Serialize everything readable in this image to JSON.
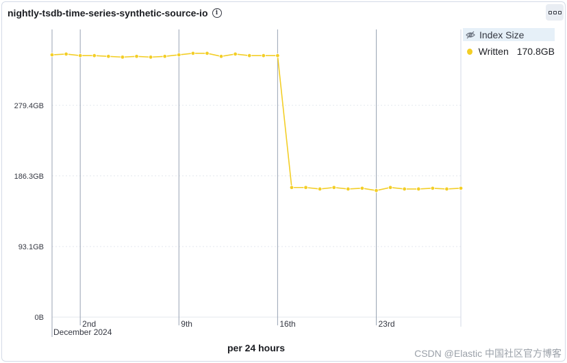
{
  "panel": {
    "title": "nightly-tsdb-time-series-synthetic-source-io",
    "info_icon": "info-icon",
    "menu_icon": "panel-options-icon"
  },
  "legend": {
    "header_label": "Index Size",
    "header_icon": "eye-closed-icon",
    "items": [
      {
        "name": "Written",
        "value": "170.8GB",
        "color": "#f3ce26"
      }
    ]
  },
  "watermark": "CSDN @Elastic 中国社区官方博客",
  "chart_data": {
    "type": "line",
    "title": "nightly-tsdb-time-series-synthetic-source-io",
    "xlabel": "per 24 hours",
    "ylabel": "",
    "x_tick_labels": [
      "2nd",
      "9th",
      "16th",
      "23rd"
    ],
    "x_tick_sublabel": "December 2024",
    "x_domain": [
      "2024-11-30",
      "2024-12-29"
    ],
    "y_ticks": [
      0,
      93.1,
      186.3,
      279.4
    ],
    "y_tick_labels": [
      "0B",
      "93.1GB",
      "186.3GB",
      "279.4GB"
    ],
    "ylim": [
      0,
      384
    ],
    "grid": "horizontal-dotted",
    "legend_position": "top-right",
    "series": [
      {
        "name": "Written",
        "color": "#f3ce26",
        "x": [
          "2024-11-30",
          "2024-12-01",
          "2024-12-02",
          "2024-12-03",
          "2024-12-04",
          "2024-12-05",
          "2024-12-06",
          "2024-12-07",
          "2024-12-08",
          "2024-12-09",
          "2024-12-10",
          "2024-12-11",
          "2024-12-12",
          "2024-12-13",
          "2024-12-14",
          "2024-12-15",
          "2024-12-16",
          "2024-12-17",
          "2024-12-18",
          "2024-12-19",
          "2024-12-20",
          "2024-12-21",
          "2024-12-22",
          "2024-12-23",
          "2024-12-24",
          "2024-12-25",
          "2024-12-26",
          "2024-12-27",
          "2024-12-28",
          "2024-12-29"
        ],
        "values": [
          346,
          347,
          345,
          345,
          344,
          343,
          344,
          343,
          344,
          346,
          348,
          348,
          344,
          347,
          345,
          345,
          345,
          171,
          171,
          169,
          171,
          169,
          170,
          167,
          171,
          169,
          169,
          170,
          169,
          170
        ]
      }
    ]
  }
}
